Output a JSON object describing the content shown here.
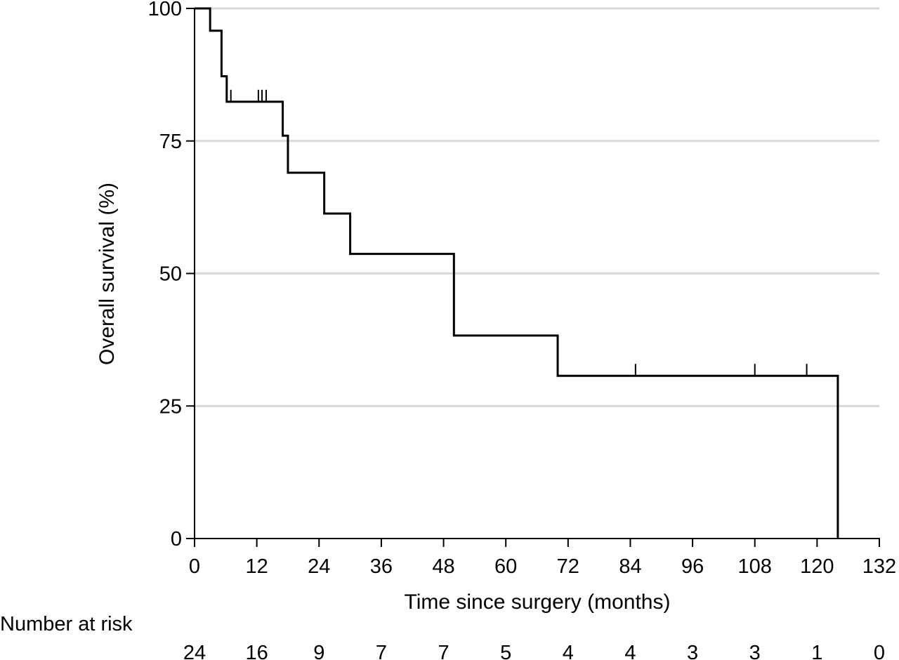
{
  "chart_data": {
    "type": "line",
    "subtype": "kaplan-meier step",
    "xlabel": "Time since surgery (months)",
    "ylabel": "Overall survival (%)",
    "xlim": [
      0,
      132
    ],
    "ylim": [
      0,
      100
    ],
    "xticks": [
      0,
      12,
      24,
      36,
      48,
      60,
      72,
      84,
      96,
      108,
      120,
      132
    ],
    "yticks": [
      0,
      25,
      50,
      75,
      100
    ],
    "grid": "horizontal",
    "series": [
      {
        "color": "#000000",
        "steps": [
          {
            "x": 0,
            "y": 100
          },
          {
            "x": 3,
            "y": 95.8
          },
          {
            "x": 5.2,
            "y": 87.2
          },
          {
            "x": 6.2,
            "y": 82.4
          },
          {
            "x": 17,
            "y": 76.0
          },
          {
            "x": 18,
            "y": 69.0
          },
          {
            "x": 25,
            "y": 61.3
          },
          {
            "x": 30,
            "y": 53.7
          },
          {
            "x": 50,
            "y": 38.3
          },
          {
            "x": 70,
            "y": 30.7
          },
          {
            "x": 124,
            "y": 0
          }
        ],
        "censored": [
          {
            "x": 7,
            "y": 82.4
          },
          {
            "x": 12.3,
            "y": 82.4
          },
          {
            "x": 13,
            "y": 82.4
          },
          {
            "x": 13.8,
            "y": 82.4
          },
          {
            "x": 85,
            "y": 30.7
          },
          {
            "x": 108,
            "y": 30.7
          },
          {
            "x": 118,
            "y": 30.7
          }
        ]
      }
    ],
    "risk_table": {
      "title": "Number at risk",
      "times": [
        0,
        12,
        24,
        36,
        48,
        60,
        72,
        84,
        96,
        108,
        120,
        132
      ],
      "values": [
        "24",
        "16",
        "9",
        "7",
        "7",
        "5",
        "4",
        "4",
        "3",
        "3",
        "1",
        "0"
      ]
    }
  }
}
